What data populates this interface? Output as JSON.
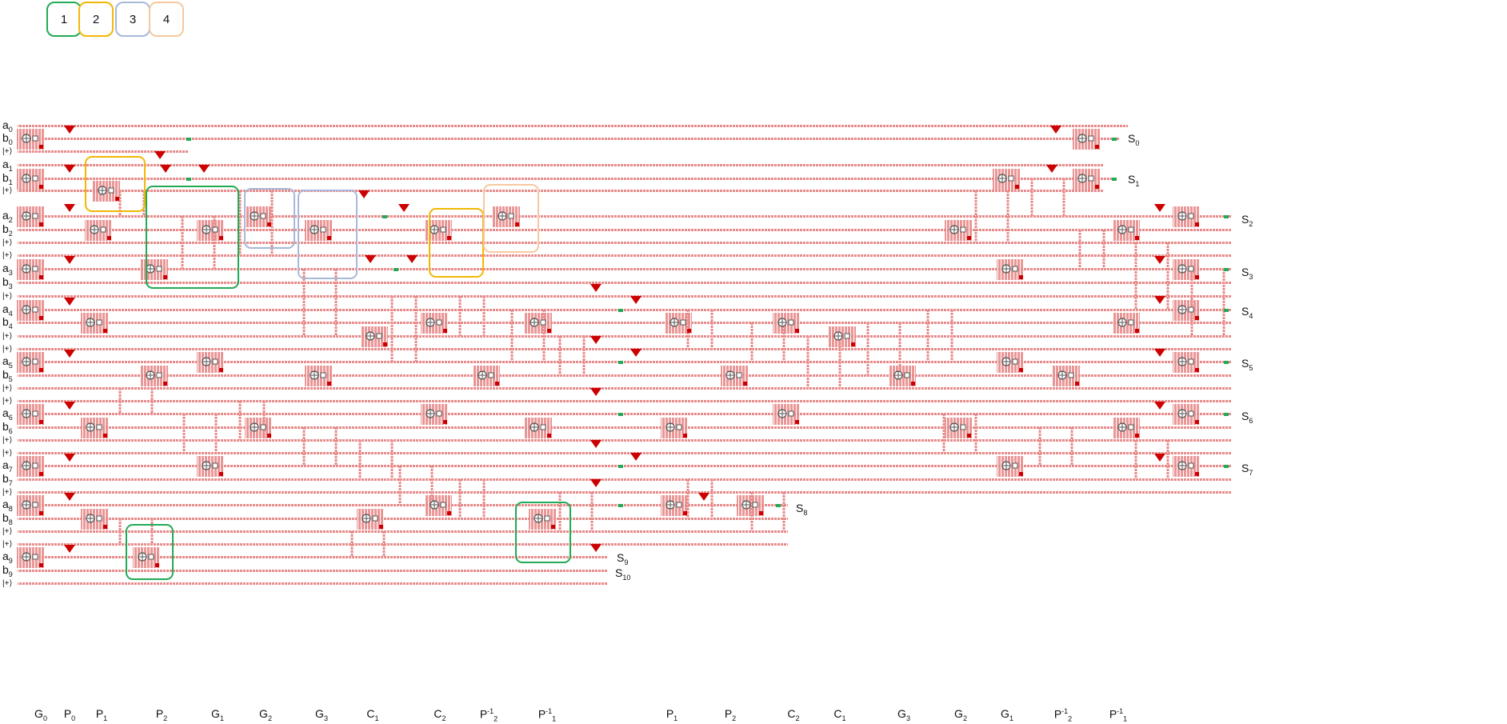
{
  "legend": [
    {
      "label": "1",
      "color": "#22aa55"
    },
    {
      "label": "2",
      "color": "#f2b705"
    },
    {
      "label": "3",
      "color": "#a8b8d8"
    },
    {
      "label": "4",
      "color": "#f5c9a0"
    }
  ],
  "colors": {
    "wire": "#e88a8a",
    "accent": "#cc0000",
    "green": "#22aa55"
  },
  "qubit_rows": [
    {
      "l": "a",
      "s": "0"
    },
    {
      "l": "b",
      "s": "0"
    },
    {
      "l": "|+⟩",
      "s": ""
    },
    {
      "l": "a",
      "s": "1"
    },
    {
      "l": "b",
      "s": "1"
    },
    {
      "l": "|+⟩",
      "s": ""
    },
    {
      "l": "a",
      "s": "2"
    },
    {
      "l": "b",
      "s": "2"
    },
    {
      "l": "|+⟩",
      "s": ""
    },
    {
      "l": "|+⟩",
      "s": ""
    },
    {
      "l": "a",
      "s": "3"
    },
    {
      "l": "b",
      "s": "3"
    },
    {
      "l": "|+⟩",
      "s": ""
    },
    {
      "l": "a",
      "s": "4"
    },
    {
      "l": "b",
      "s": "4"
    },
    {
      "l": "|+⟩",
      "s": ""
    },
    {
      "l": "|+⟩",
      "s": ""
    },
    {
      "l": "a",
      "s": "5"
    },
    {
      "l": "b",
      "s": "5"
    },
    {
      "l": "|+⟩",
      "s": ""
    },
    {
      "l": "|+⟩",
      "s": ""
    },
    {
      "l": "a",
      "s": "6"
    },
    {
      "l": "b",
      "s": "6"
    },
    {
      "l": "|+⟩",
      "s": ""
    },
    {
      "l": "|+⟩",
      "s": ""
    },
    {
      "l": "a",
      "s": "7"
    },
    {
      "l": "b",
      "s": "7"
    },
    {
      "l": "|+⟩",
      "s": ""
    },
    {
      "l": "a",
      "s": "8"
    },
    {
      "l": "b",
      "s": "8"
    },
    {
      "l": "|+⟩",
      "s": ""
    },
    {
      "l": "|+⟩",
      "s": ""
    },
    {
      "l": "a",
      "s": "9"
    },
    {
      "l": "b",
      "s": "9"
    },
    {
      "l": "|+⟩",
      "s": ""
    }
  ],
  "outputs": [
    {
      "l": "S",
      "s": "0"
    },
    {
      "l": "S",
      "s": "1"
    },
    {
      "l": "S",
      "s": "2"
    },
    {
      "l": "S",
      "s": "3"
    },
    {
      "l": "S",
      "s": "4"
    },
    {
      "l": "S",
      "s": "5"
    },
    {
      "l": "S",
      "s": "6"
    },
    {
      "l": "S",
      "s": "7"
    },
    {
      "l": "S",
      "s": "8"
    },
    {
      "l": "S",
      "s": "9"
    },
    {
      "l": "S",
      "s": "10"
    }
  ],
  "gate_labels": [
    {
      "b": "G",
      "s": "0",
      "p": ""
    },
    {
      "b": "P",
      "s": "0",
      "p": ""
    },
    {
      "b": "P",
      "s": "1",
      "p": ""
    },
    {
      "b": "P",
      "s": "2",
      "p": ""
    },
    {
      "b": "G",
      "s": "1",
      "p": ""
    },
    {
      "b": "G",
      "s": "2",
      "p": ""
    },
    {
      "b": "G",
      "s": "3",
      "p": ""
    },
    {
      "b": "C",
      "s": "1",
      "p": ""
    },
    {
      "b": "C",
      "s": "2",
      "p": ""
    },
    {
      "b": "P",
      "s": "2",
      "p": "-1"
    },
    {
      "b": "P",
      "s": "1",
      "p": "-1"
    },
    {
      "b": "P",
      "s": "1",
      "p": ""
    },
    {
      "b": "P",
      "s": "2",
      "p": ""
    },
    {
      "b": "C",
      "s": "2",
      "p": ""
    },
    {
      "b": "C",
      "s": "1",
      "p": ""
    },
    {
      "b": "G",
      "s": "3",
      "p": ""
    },
    {
      "b": "G",
      "s": "2",
      "p": ""
    },
    {
      "b": "G",
      "s": "1",
      "p": ""
    },
    {
      "b": "P",
      "s": "2",
      "p": "-1"
    },
    {
      "b": "P",
      "s": "1",
      "p": "-1"
    }
  ]
}
